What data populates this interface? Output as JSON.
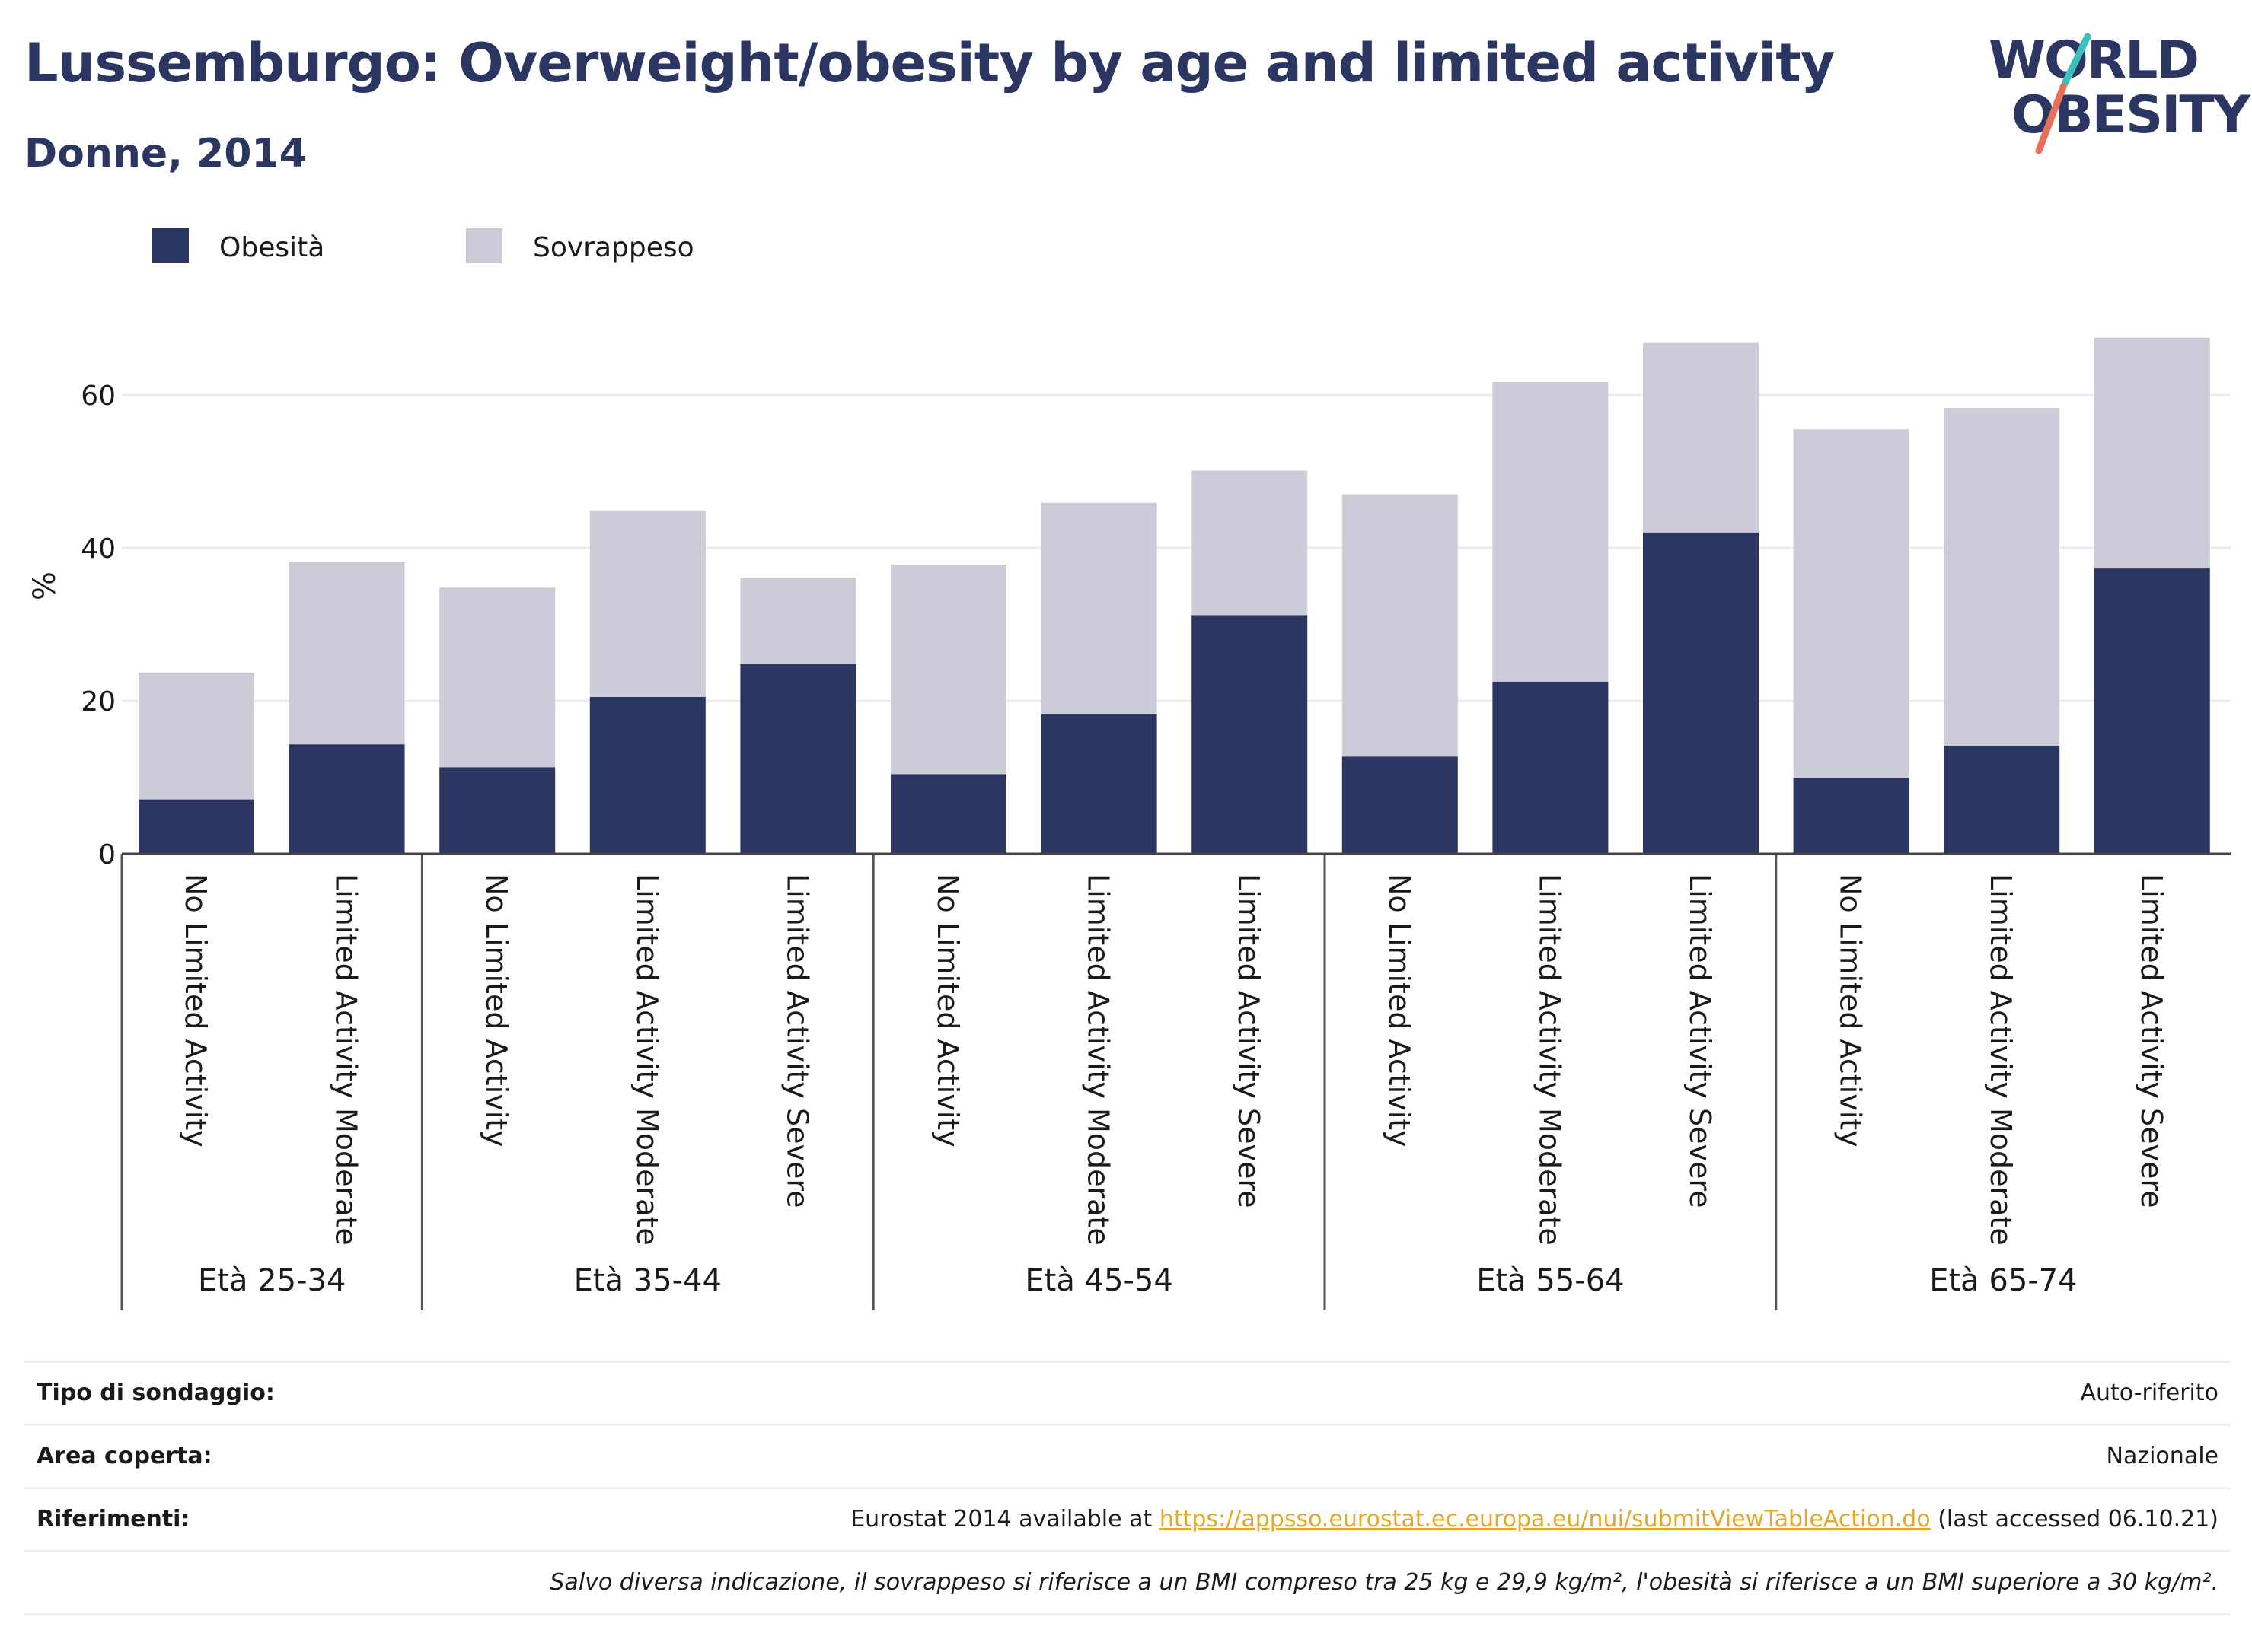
{
  "header": {
    "title": "Lussemburgo: Overweight/obesity by age and limited activity",
    "subtitle": "Donne, 2014"
  },
  "logo": {
    "line1": "WORLD",
    "line2": "OBESITY"
  },
  "colors": {
    "obesity": "#2b3663",
    "overweight": "#cbccd8",
    "text": "#2b3663",
    "link": "#e5a82a",
    "logo_teal": "#3bbfbf",
    "logo_coral": "#e8705a"
  },
  "chart_data": {
    "type": "bar",
    "stacked": true,
    "ylabel": "%",
    "ylim": [
      0,
      70
    ],
    "yticks": [
      0,
      20,
      40,
      60
    ],
    "grid": true,
    "legend_position": "top-left",
    "groups": [
      {
        "label": "Età 25-34",
        "categories": [
          "No Limited Activity",
          "Limited Activity Moderate"
        ]
      },
      {
        "label": "Età 35-44",
        "categories": [
          "No Limited Activity",
          "Limited Activity Moderate",
          "Limited Activity Severe"
        ]
      },
      {
        "label": "Età 45-54",
        "categories": [
          "No Limited Activity",
          "Limited Activity Moderate",
          "Limited Activity Severe"
        ]
      },
      {
        "label": "Età 55-64",
        "categories": [
          "No Limited Activity",
          "Limited Activity Moderate",
          "Limited Activity Severe"
        ]
      },
      {
        "label": "Età 65-74",
        "categories": [
          "No Limited Activity",
          "Limited Activity Moderate",
          "Limited Activity Severe"
        ]
      }
    ],
    "series": [
      {
        "name": "Obesità",
        "values": [
          7.1,
          14.3,
          11.3,
          20.5,
          24.8,
          10.4,
          18.3,
          31.2,
          12.7,
          22.5,
          42.0,
          9.9,
          14.1,
          37.3
        ]
      },
      {
        "name": "Sovrappeso",
        "values": [
          16.6,
          23.9,
          23.5,
          24.4,
          11.3,
          27.4,
          27.6,
          18.9,
          34.3,
          39.2,
          24.8,
          45.6,
          44.2,
          30.2
        ]
      }
    ]
  },
  "footer": {
    "survey_label": "Tipo di sondaggio:",
    "survey_value": "Auto-riferito",
    "area_label": "Area coperta:",
    "area_value": "Nazionale",
    "refs_label": "Riferimenti:",
    "refs_prefix": "Eurostat 2014 available at ",
    "refs_link": "https://appsso.eurostat.ec.europa.eu/nui/submitViewTableAction.do",
    "refs_suffix": " (last accessed 06.10.21)",
    "note": "Salvo diversa indicazione, il sovrappeso si riferisce a un BMI compreso tra 25 kg e 29,9 kg/m², l'obesità si riferisce a un BMI superiore a 30 kg/m²."
  }
}
